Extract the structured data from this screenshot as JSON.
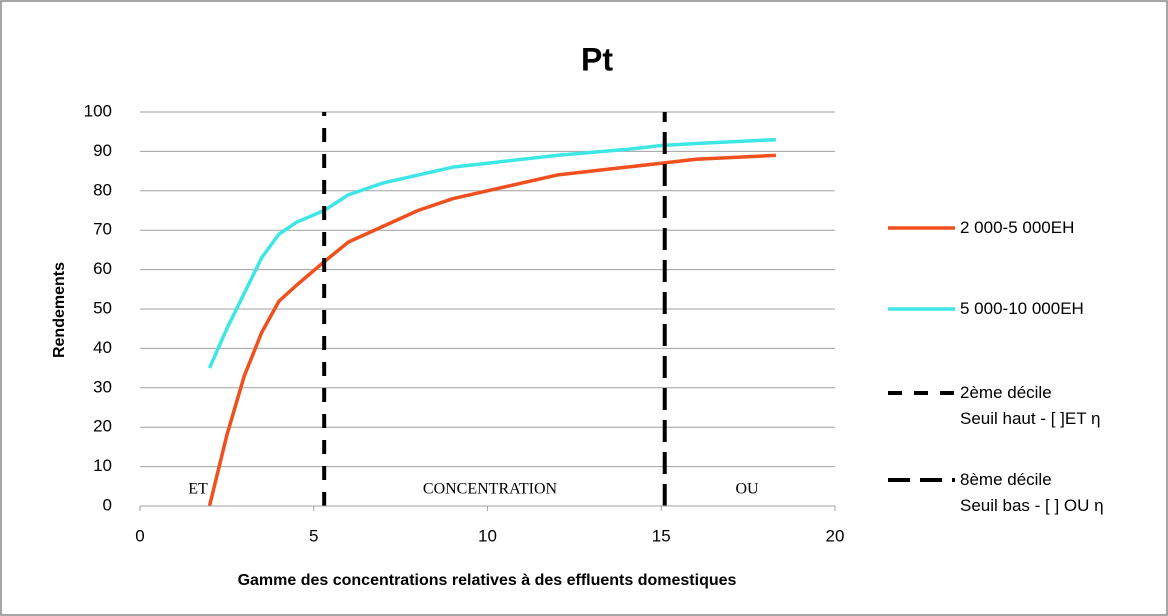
{
  "chart_data": {
    "type": "line",
    "title": "Pt",
    "xlabel": "Gamme des concentrations relatives à des effluents domestiques",
    "ylabel": "Rendements",
    "annotations": [
      "ET",
      "CONCENTRATION",
      "OU"
    ],
    "xlim": [
      0,
      20
    ],
    "xticks": [
      0,
      5,
      10,
      15,
      20
    ],
    "ylim": [
      0,
      100
    ],
    "yticks": [
      0,
      10,
      20,
      30,
      40,
      50,
      60,
      70,
      80,
      90,
      100
    ],
    "grid": true,
    "legend": "right",
    "series": [
      {
        "name": "2 000-5 000EH",
        "color": "#f0501e",
        "x": [
          2,
          2.5,
          3,
          3.5,
          4,
          4.5,
          5.3,
          6,
          7,
          8,
          9,
          10,
          12,
          14,
          15,
          16,
          18.3
        ],
        "values": [
          0,
          18,
          33,
          44,
          52,
          56,
          62,
          67,
          71,
          75,
          78,
          80,
          84,
          86,
          87,
          88,
          89
        ]
      },
      {
        "name": "5 000-10 000EH",
        "color": "#3ee6e6",
        "x": [
          2,
          2.5,
          3,
          3.5,
          4,
          4.5,
          5.3,
          6,
          7,
          8,
          9,
          10,
          12,
          14,
          15,
          16,
          18.3
        ],
        "values": [
          35,
          45,
          54,
          63,
          69,
          72,
          75,
          79,
          82,
          84,
          86,
          87,
          89,
          90.5,
          91.5,
          92,
          93
        ]
      },
      {
        "name": "2ème décile\nSeuil haut - [ ]ET η",
        "color": "#000000",
        "dash": "dashed",
        "x": [
          5.3,
          5.3
        ],
        "values": [
          0,
          100
        ]
      },
      {
        "name": "8ème décile\nSeuil bas - [ ] OU η",
        "color": "#000000",
        "dash": "long-dashed",
        "x": [
          15.1,
          15.1
        ],
        "values": [
          0,
          100
        ]
      }
    ]
  }
}
